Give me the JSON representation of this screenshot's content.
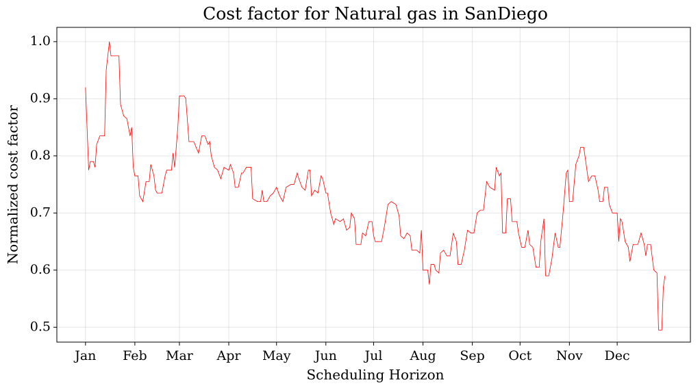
{
  "chart_data": {
    "type": "line",
    "title": "Cost factor for Natural gas in SanDiego",
    "xlabel": "Scheduling Horizon",
    "ylabel": "Normalized cost factor",
    "color": "#ff0000",
    "grid": true,
    "xlim": [
      -18,
      380
    ],
    "ylim": [
      0.474,
      1.025
    ],
    "xticks": [
      {
        "value": 0,
        "label": "Jan"
      },
      {
        "value": 31,
        "label": "Feb"
      },
      {
        "value": 59,
        "label": "Mar"
      },
      {
        "value": 90,
        "label": "Apr"
      },
      {
        "value": 120,
        "label": "May"
      },
      {
        "value": 151,
        "label": "Jun"
      },
      {
        "value": 181,
        "label": "Jul"
      },
      {
        "value": 212,
        "label": "Aug"
      },
      {
        "value": 243,
        "label": "Sep"
      },
      {
        "value": 273,
        "label": "Oct"
      },
      {
        "value": 304,
        "label": "Nov"
      },
      {
        "value": 334,
        "label": "Dec"
      }
    ],
    "yticks": [
      0.5,
      0.6,
      0.7,
      0.8,
      0.9,
      {
        "value": 1.0,
        "label": "1.0"
      }
    ],
    "x": [
      0,
      2,
      3,
      5,
      6,
      7,
      9,
      12,
      13,
      15,
      16,
      21,
      22,
      24,
      26,
      28,
      29,
      30,
      31,
      33,
      34,
      36,
      38,
      40,
      41,
      43,
      44,
      45,
      48,
      50,
      51,
      54,
      55,
      56,
      58,
      59,
      62,
      63,
      65,
      68,
      71,
      72,
      73,
      75,
      77,
      78,
      79,
      81,
      83,
      85,
      87,
      90,
      91,
      93,
      94,
      96,
      98,
      99,
      101,
      104,
      105,
      108,
      110,
      111,
      112,
      114,
      116,
      118,
      120,
      122,
      124,
      126,
      129,
      131,
      133,
      134,
      136,
      138,
      140,
      141,
      142,
      144,
      146,
      148,
      149,
      151,
      152,
      154,
      156,
      157,
      160,
      162,
      164,
      166,
      167,
      169,
      170,
      173,
      174,
      176,
      178,
      180,
      181,
      182,
      186,
      188,
      190,
      192,
      195,
      197,
      198,
      200,
      202,
      204,
      205,
      208,
      210,
      211,
      212,
      215,
      216,
      217,
      219,
      220,
      222,
      223,
      225,
      227,
      229,
      231,
      233,
      234,
      236,
      238,
      240,
      242,
      244,
      246,
      248,
      250,
      252,
      254,
      257,
      258,
      260,
      261,
      262,
      264,
      265,
      267,
      268,
      271,
      272,
      274,
      276,
      278,
      279,
      281,
      283,
      285,
      286,
      288,
      289,
      291,
      293,
      295,
      297,
      298,
      300,
      302,
      303,
      304,
      306,
      308,
      310,
      311,
      313,
      316,
      318,
      320,
      322,
      323,
      325,
      326,
      328,
      329,
      331,
      334,
      335,
      336,
      337,
      339,
      341,
      342,
      344,
      347,
      349,
      351,
      352,
      353,
      355,
      357,
      359,
      360,
      362,
      363,
      364
    ],
    "values": [
      0.92,
      0.775,
      0.79,
      0.79,
      0.78,
      0.82,
      0.835,
      0.835,
      0.95,
      1.0,
      0.975,
      0.975,
      0.89,
      0.87,
      0.865,
      0.835,
      0.85,
      0.78,
      0.765,
      0.765,
      0.73,
      0.72,
      0.755,
      0.755,
      0.785,
      0.765,
      0.74,
      0.735,
      0.735,
      0.765,
      0.775,
      0.775,
      0.805,
      0.78,
      0.85,
      0.905,
      0.905,
      0.9,
      0.825,
      0.825,
      0.805,
      0.82,
      0.835,
      0.835,
      0.82,
      0.825,
      0.8,
      0.78,
      0.775,
      0.76,
      0.78,
      0.775,
      0.785,
      0.77,
      0.745,
      0.745,
      0.77,
      0.77,
      0.78,
      0.78,
      0.725,
      0.72,
      0.72,
      0.74,
      0.72,
      0.72,
      0.73,
      0.735,
      0.745,
      0.73,
      0.72,
      0.745,
      0.75,
      0.75,
      0.77,
      0.76,
      0.745,
      0.74,
      0.775,
      0.775,
      0.73,
      0.74,
      0.735,
      0.765,
      0.76,
      0.735,
      0.735,
      0.7,
      0.68,
      0.69,
      0.685,
      0.69,
      0.67,
      0.675,
      0.7,
      0.69,
      0.645,
      0.645,
      0.665,
      0.66,
      0.685,
      0.685,
      0.66,
      0.65,
      0.65,
      0.68,
      0.715,
      0.72,
      0.715,
      0.695,
      0.66,
      0.655,
      0.665,
      0.66,
      0.635,
      0.635,
      0.63,
      0.67,
      0.6,
      0.6,
      0.575,
      0.61,
      0.61,
      0.6,
      0.595,
      0.63,
      0.635,
      0.625,
      0.625,
      0.665,
      0.65,
      0.61,
      0.61,
      0.635,
      0.67,
      0.665,
      0.665,
      0.7,
      0.705,
      0.705,
      0.755,
      0.745,
      0.74,
      0.78,
      0.765,
      0.77,
      0.665,
      0.665,
      0.725,
      0.725,
      0.685,
      0.685,
      0.665,
      0.64,
      0.64,
      0.67,
      0.645,
      0.64,
      0.605,
      0.605,
      0.65,
      0.69,
      0.59,
      0.59,
      0.62,
      0.665,
      0.64,
      0.64,
      0.7,
      0.77,
      0.775,
      0.72,
      0.72,
      0.785,
      0.8,
      0.815,
      0.815,
      0.755,
      0.765,
      0.765,
      0.74,
      0.72,
      0.72,
      0.745,
      0.745,
      0.715,
      0.7,
      0.7,
      0.65,
      0.69,
      0.685,
      0.65,
      0.64,
      0.615,
      0.645,
      0.645,
      0.665,
      0.645,
      0.625,
      0.645,
      0.645,
      0.6,
      0.595,
      0.495,
      0.495,
      0.57,
      0.59
    ]
  }
}
